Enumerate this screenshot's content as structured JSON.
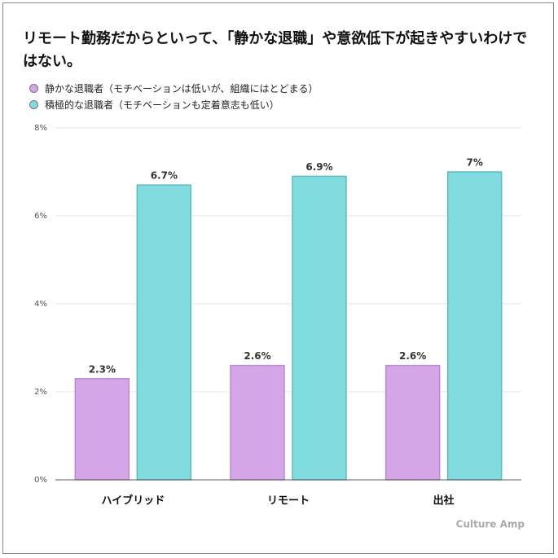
{
  "chart_data": {
    "type": "bar",
    "title": "リモート勤務だからといって、「静かな退職」や意欲低下が起きやすいわけではない。",
    "categories": [
      "ハイブリッド",
      "リモート",
      "出社"
    ],
    "series": [
      {
        "name": "静かな退職者（モチベーションは低いが、組織にはとどまる）",
        "color": "#d4a6e7",
        "values": [
          2.3,
          2.6,
          2.6
        ],
        "value_labels": [
          "2.3%",
          "2.6%",
          "2.6%"
        ]
      },
      {
        "name": "積極的な退職者（モチベーションも定着意志も低い）",
        "color": "#80dcdf",
        "values": [
          6.7,
          6.9,
          7
        ],
        "value_labels": [
          "6.7%",
          "6.9%",
          "7%"
        ]
      }
    ],
    "ylim": [
      0,
      8
    ],
    "yticks": [
      {
        "value": 0,
        "label": "0%"
      },
      {
        "value": 2,
        "label": "2%"
      },
      {
        "value": 4,
        "label": "4%"
      },
      {
        "value": 6,
        "label": "6%"
      },
      {
        "value": 8,
        "label": "8%"
      }
    ],
    "grid": true,
    "legend": "top-left",
    "watermark": "Culture Amp"
  }
}
